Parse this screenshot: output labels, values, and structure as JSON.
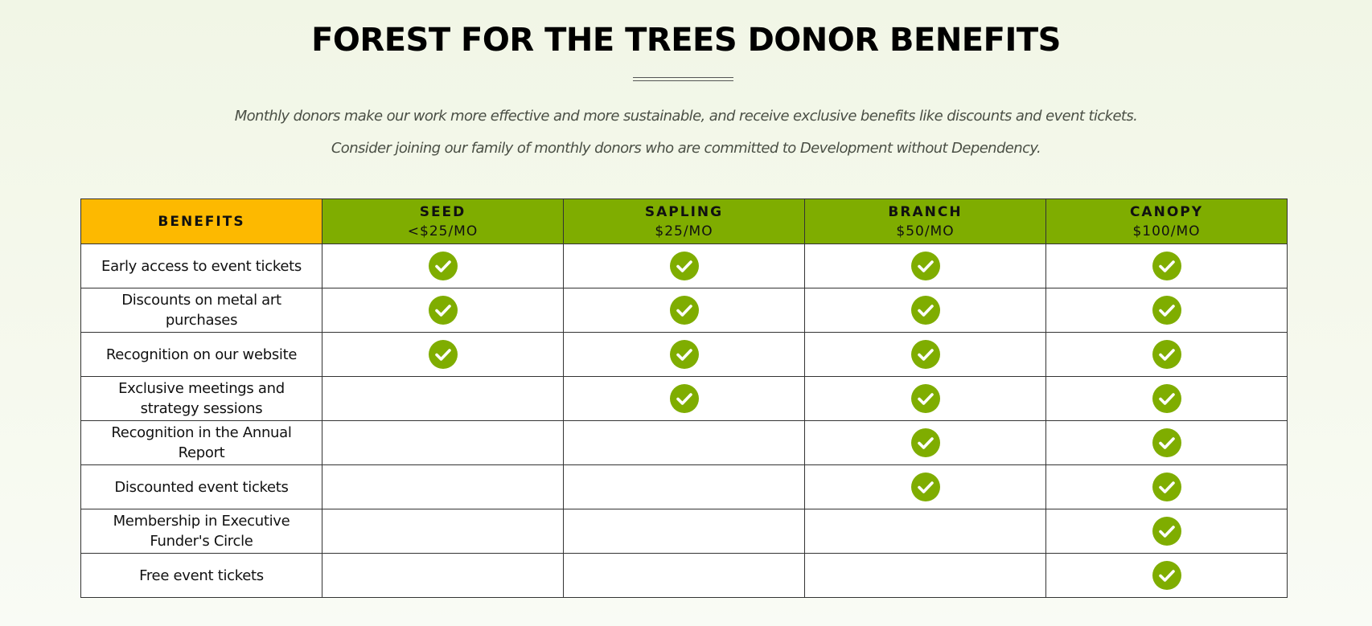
{
  "title": "FOREST FOR THE TREES DONOR BENEFITS",
  "intro": {
    "line1": "Monthly donors make our work more effective and more sustainable, and receive exclusive benefits like discounts and event tickets.",
    "line2": "Consider joining our family of monthly donors who are committed to Development without Dependency."
  },
  "colors": {
    "benefits_header": "#fdb900",
    "tier_header": "#7fad00",
    "check": "#7fad00"
  },
  "table": {
    "benefits_header": "BENEFITS",
    "tiers": [
      {
        "name": "SEED",
        "price": "<$25/MO"
      },
      {
        "name": "SAPLING",
        "price": "$25/MO"
      },
      {
        "name": "BRANCH",
        "price": "$50/MO"
      },
      {
        "name": "CANOPY",
        "price": "$100/MO"
      }
    ],
    "rows": [
      {
        "label": "Early access to event tickets",
        "checks": [
          true,
          true,
          true,
          true
        ]
      },
      {
        "label": "Discounts on metal art purchases",
        "checks": [
          true,
          true,
          true,
          true
        ]
      },
      {
        "label": "Recognition on our website",
        "checks": [
          true,
          true,
          true,
          true
        ]
      },
      {
        "label": "Exclusive meetings and strategy sessions",
        "checks": [
          false,
          true,
          true,
          true
        ]
      },
      {
        "label": "Recognition in the Annual Report",
        "checks": [
          false,
          false,
          true,
          true
        ]
      },
      {
        "label": "Discounted event tickets",
        "checks": [
          false,
          false,
          true,
          true
        ]
      },
      {
        "label": "Membership in Executive Funder's Circle",
        "checks": [
          false,
          false,
          false,
          true
        ]
      },
      {
        "label": "Free event tickets",
        "checks": [
          false,
          false,
          false,
          true
        ]
      }
    ],
    "check_icon": "check-circle-icon"
  }
}
